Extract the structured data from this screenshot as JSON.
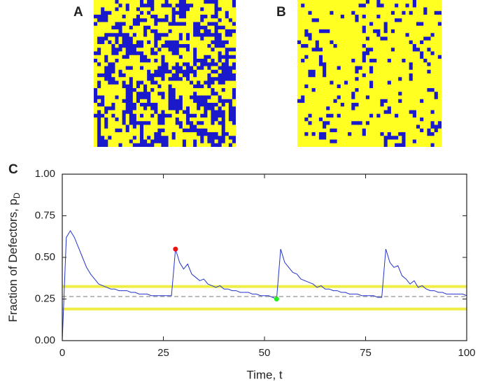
{
  "panels": {
    "a": "A",
    "b": "B"
  },
  "chart_data": {
    "type": "line",
    "panel_label": "C",
    "xlabel": "Time,  t",
    "ylabel": "Fraction of Defectors,  p",
    "ylabel_subscript": "D",
    "xlim": [
      0,
      100
    ],
    "ylim": [
      0,
      1
    ],
    "xticks": [
      0,
      25,
      50,
      75,
      100
    ],
    "yticks": [
      {
        "value": 0,
        "label": "0.00"
      },
      {
        "value": 0.25,
        "label": "0.25"
      },
      {
        "value": 0.5,
        "label": "0.50"
      },
      {
        "value": 0.75,
        "label": "0.75"
      },
      {
        "value": 1,
        "label": "1.00"
      }
    ],
    "x": [
      0,
      1,
      2,
      3,
      4,
      5,
      6,
      7,
      8,
      9,
      10,
      11,
      12,
      13,
      14,
      15,
      16,
      17,
      18,
      19,
      20,
      21,
      22,
      23,
      24,
      25,
      26,
      27,
      28,
      29,
      30,
      31,
      32,
      33,
      34,
      35,
      36,
      37,
      38,
      39,
      40,
      41,
      42,
      43,
      44,
      45,
      46,
      47,
      48,
      49,
      50,
      51,
      52,
      53,
      54,
      55,
      56,
      57,
      58,
      59,
      60,
      61,
      62,
      63,
      64,
      65,
      66,
      67,
      68,
      69,
      70,
      71,
      72,
      73,
      74,
      75,
      76,
      77,
      78,
      79,
      80,
      81,
      82,
      83,
      84,
      85,
      86,
      87,
      88,
      89,
      90,
      91,
      92,
      93,
      94,
      95,
      96,
      97,
      98,
      99,
      100
    ],
    "series": [
      {
        "color": "#2233cc",
        "values": [
          0,
          0.62,
          0.66,
          0.62,
          0.56,
          0.5,
          0.44,
          0.4,
          0.37,
          0.34,
          0.33,
          0.32,
          0.31,
          0.31,
          0.3,
          0.3,
          0.3,
          0.29,
          0.29,
          0.28,
          0.28,
          0.28,
          0.27,
          0.27,
          0.27,
          0.27,
          0.27,
          0.27,
          0.55,
          0.47,
          0.43,
          0.46,
          0.4,
          0.38,
          0.36,
          0.37,
          0.34,
          0.33,
          0.32,
          0.33,
          0.31,
          0.31,
          0.3,
          0.3,
          0.29,
          0.29,
          0.29,
          0.28,
          0.28,
          0.27,
          0.27,
          0.27,
          0.26,
          0.25,
          0.55,
          0.47,
          0.44,
          0.41,
          0.4,
          0.37,
          0.36,
          0.35,
          0.34,
          0.32,
          0.33,
          0.31,
          0.31,
          0.3,
          0.3,
          0.29,
          0.29,
          0.28,
          0.28,
          0.28,
          0.27,
          0.27,
          0.27,
          0.27,
          0.26,
          0.26,
          0.55,
          0.47,
          0.44,
          0.45,
          0.39,
          0.37,
          0.34,
          0.36,
          0.32,
          0.33,
          0.31,
          0.3,
          0.3,
          0.29,
          0.29,
          0.28,
          0.28,
          0.28,
          0.28,
          0.28,
          0.27
        ]
      }
    ],
    "markers": [
      {
        "x": 28,
        "y": 0.55,
        "color": "#ee1111"
      },
      {
        "x": 53,
        "y": 0.25,
        "color": "#22ee22"
      }
    ],
    "hlines": [
      {
        "y": 0.325,
        "color": "#eeee44",
        "style": "solid"
      },
      {
        "y": 0.19,
        "color": "#eeee44",
        "style": "solid"
      },
      {
        "y": 0.265,
        "color": "#888888",
        "style": "dashed"
      }
    ]
  }
}
